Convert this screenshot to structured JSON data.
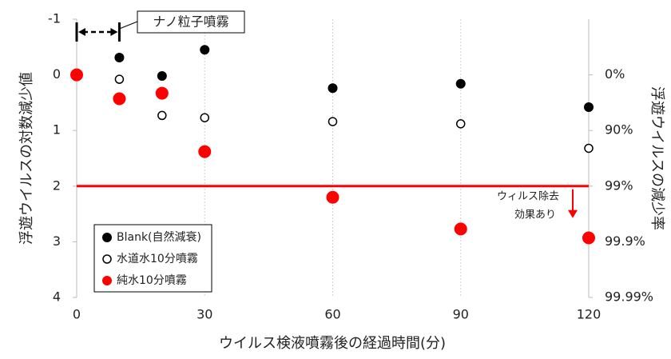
{
  "chart_data": {
    "type": "scatter",
    "xlabel": "ウイルス検液噴霧後の経過時間(分)",
    "ylabel": "浮遊ウイルスの対数減少値",
    "y2label": "浮遊ウイルスの減少率",
    "xlim": [
      0,
      120
    ],
    "xticks": [
      0,
      30,
      60,
      90,
      120
    ],
    "ylim": [
      -1,
      4
    ],
    "yticks": [
      -1,
      0,
      1,
      2,
      3,
      4
    ],
    "y_inverted": true,
    "y2lim": [
      -900,
      99.99
    ],
    "y2scale": "log-reduction",
    "y2ticks": [
      {
        "value": 0,
        "label": "0%"
      },
      {
        "value": 90,
        "label": "90%"
      },
      {
        "value": 99,
        "label": "99%"
      },
      {
        "value": 99.9,
        "label": "99.9%"
      },
      {
        "value": 99.99,
        "label": "99.99%"
      }
    ],
    "grid": "x",
    "legend": "lower left",
    "series": [
      {
        "name": "Blank(自然減衰)",
        "color": "#000000",
        "marker": "filled",
        "x": [
          10,
          20,
          30,
          60,
          90,
          120
        ],
        "values": [
          -0.31,
          0.02,
          -0.45,
          0.24,
          0.16,
          0.58
        ]
      },
      {
        "name": "水道水10分噴霧",
        "color": "#000000",
        "marker": "open",
        "x": [
          10,
          20,
          30,
          60,
          90,
          120
        ],
        "values": [
          0.08,
          0.73,
          0.77,
          0.84,
          0.88,
          1.32
        ]
      },
      {
        "name": "純水10分噴霧",
        "color": "#ff0000",
        "marker": "filled",
        "x": [
          0,
          10,
          20,
          30,
          60,
          90,
          120
        ],
        "values": [
          0,
          0.43,
          0.33,
          1.38,
          2.2,
          2.77,
          2.93
        ]
      }
    ],
    "threshold": {
      "value": 2,
      "color": "#ff0000",
      "text": [
        "ウィルス除去",
        "効果あり"
      ]
    },
    "span_annotation": {
      "text": "ナノ粒子噴霧",
      "x_start": 0,
      "x_end": 10
    }
  }
}
